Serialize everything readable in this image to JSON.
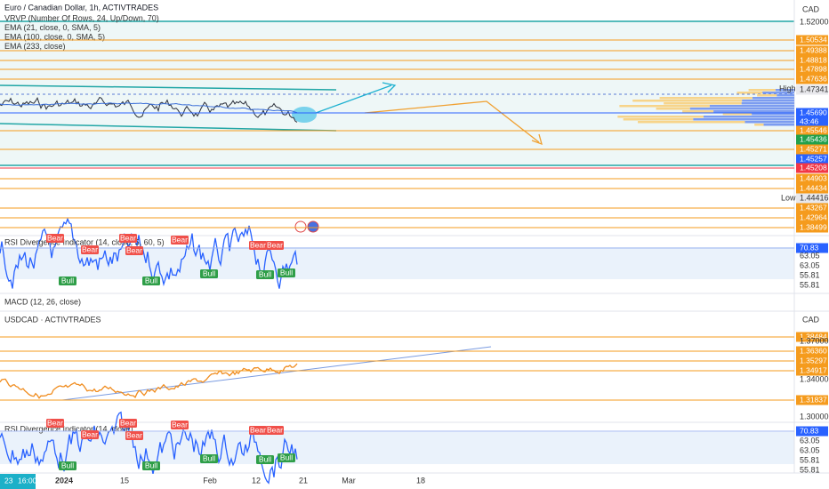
{
  "main_pane": {
    "title": "Euro / Canadian Dollar, 1h, ACTIVTRADES",
    "indicators": [
      "VRVP (Number Of Rows, 24, Up/Down, 70)",
      "EMA (21, close, 0, SMA, 5)",
      "EMA (100, close, 0, SMA, 5)",
      "EMA (233, close)"
    ],
    "currency": "CAD",
    "price_labels": [
      "1.52000",
      "1.50534",
      "1.49388",
      "1.48818",
      "1.47898",
      "1.47636",
      "1.47341",
      "1.45690",
      "43:46",
      "1.45546",
      "1.45436",
      "1.45271",
      "1.45257",
      "1.45208",
      "1.44903",
      "1.44434",
      "1.44416",
      "1.43267",
      "1.42964",
      "1.38499"
    ],
    "high_label": "High",
    "low_label": "Low"
  },
  "rsi_pane_1": {
    "title": "RSI Divergence Indicator (14, close, 5, 60, 5)",
    "price_labels": [
      "70.83",
      "63.05",
      "63.05",
      "55.81",
      "55.81"
    ],
    "signals": [
      "Bear",
      "Bear",
      "Bear",
      "Bear",
      "Bear",
      "Bear",
      "Bear",
      "Bull",
      "Bull",
      "Bull",
      "Bull",
      "Bull"
    ]
  },
  "macd_pane": {
    "title": "MACD (12, 26, close)"
  },
  "usdcad_pane": {
    "title": "USDCAD · ACTIVTRADES",
    "currency": "CAD",
    "price_labels": [
      "1.38484",
      "1.37000",
      "1.36360",
      "1.35297",
      "1.34917",
      "1.34000",
      "1.31837",
      "1.30000"
    ]
  },
  "rsi_pane_2": {
    "title": "RSI Divergence Indicator (14, close)",
    "price_labels": [
      "70.83",
      "63.05",
      "63.05",
      "55.81",
      "55.81"
    ],
    "signals": [
      "Bear",
      "Bear",
      "Bear",
      "Bear",
      "Bear",
      "Bear",
      "Bear",
      "Bull",
      "Bull",
      "Bull",
      "Bull",
      "Bull"
    ]
  },
  "time_axis": [
    "23",
    "16:00",
    "2024",
    "15",
    "Feb",
    "12",
    "21",
    "Mar",
    "18"
  ]
}
